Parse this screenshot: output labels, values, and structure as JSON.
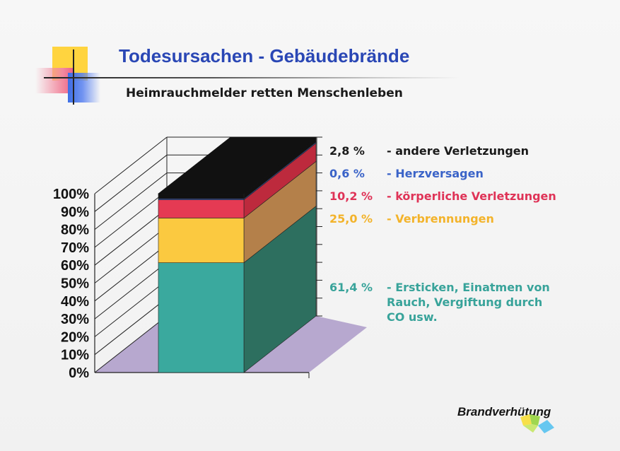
{
  "slide": {
    "title": "Todesursachen - Gebäudebrände",
    "subtitle": "Heimrauchmelder retten Menschenleben",
    "brand": "Brandverhütung"
  },
  "chart_data": {
    "type": "bar",
    "stacked": true,
    "three_d": true,
    "title": "Todesursachen - Gebäudebrände",
    "subtitle": "Heimrauchmelder retten Menschenleben",
    "categories": [
      ""
    ],
    "ylim": [
      0,
      100
    ],
    "y_ticks": [
      "0%",
      "10%",
      "20%",
      "30%",
      "40%",
      "50%",
      "60%",
      "70%",
      "80%",
      "90%",
      "100%"
    ],
    "legend_position": "right",
    "series": [
      {
        "name": "- Ersticken, Einatmen von Rauch, Vergiftung durch CO usw.",
        "name_lines": [
          "- Ersticken, Einatmen von",
          "Rauch, Vergiftung durch",
          "CO usw."
        ],
        "value": 61.4,
        "label": "61,4 %",
        "color": "#3aa99e",
        "side_color": "#2d6f5f",
        "text_color": "#38a39a"
      },
      {
        "name": "- Verbrennungen",
        "name_lines": [
          "- Verbrennungen"
        ],
        "value": 25.0,
        "label": "25,0 %",
        "color": "#fbc940",
        "side_color": "#b4804a",
        "text_color": "#f3b32a"
      },
      {
        "name": "- körperliche Verletzungen",
        "name_lines": [
          "- körperliche Verletzungen"
        ],
        "value": 10.2,
        "label": "10,2 %",
        "color": "#e53a53",
        "side_color": "#bd2a3d",
        "text_color": "#df3357"
      },
      {
        "name": "- Herzversagen",
        "name_lines": [
          "- Herzversagen"
        ],
        "value": 0.6,
        "label": "0,6 %",
        "color": "#3d62c8",
        "side_color": "#3358b8",
        "text_color": "#3a63c8"
      },
      {
        "name": "- andere Verletzungen",
        "name_lines": [
          "- andere Verletzungen"
        ],
        "value": 2.8,
        "label": "2,8 %",
        "color": "#111111",
        "side_color": "#111111",
        "text_color": "#1a1a1a"
      }
    ]
  }
}
